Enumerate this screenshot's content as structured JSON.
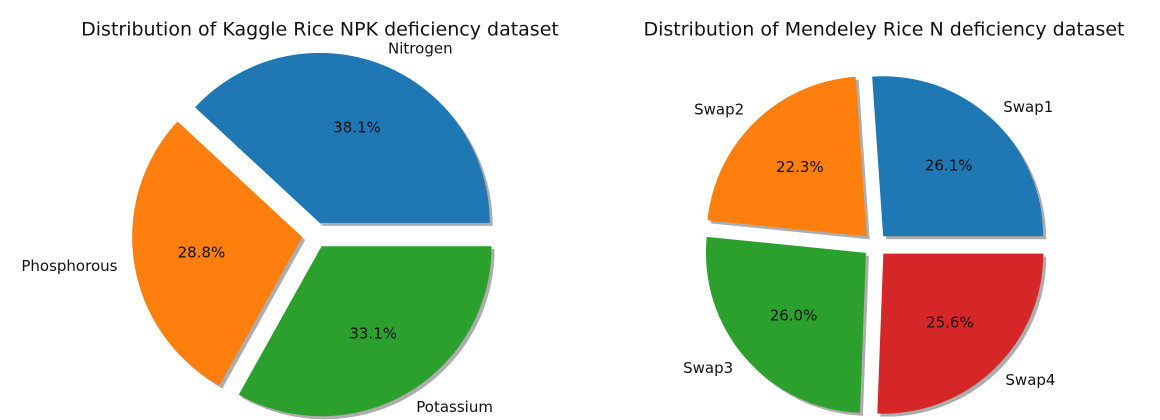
{
  "chart_data": [
    {
      "type": "pie",
      "title": "Distribution of Kaggle Rice NPK deficiency dataset",
      "categories": [
        "Nitrogen",
        "Phosphorous",
        "Potassium"
      ],
      "values": [
        38.1,
        28.8,
        33.1
      ],
      "value_labels": [
        "38.1%",
        "28.8%",
        "33.1%"
      ],
      "colors": [
        "#1f77b4",
        "#ff7f0e",
        "#2ca02c"
      ]
    },
    {
      "type": "pie",
      "title": "Distribution of Mendeley Rice N deficiency dataset",
      "categories": [
        "Swap1",
        "Swap2",
        "Swap3",
        "Swap4"
      ],
      "values": [
        26.1,
        22.3,
        26.0,
        25.6
      ],
      "value_labels": [
        "26.1%",
        "22.3%",
        "26.0%",
        "25.6%"
      ],
      "colors": [
        "#1f77b4",
        "#ff7f0e",
        "#2ca02c",
        "#d62728"
      ]
    }
  ]
}
